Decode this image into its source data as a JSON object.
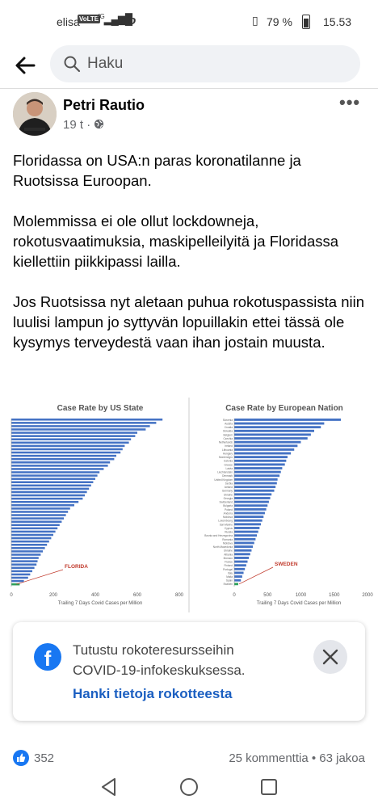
{
  "status_bar": {
    "carrier": "elisa",
    "volte": "VoLTE",
    "network": "4G",
    "fo": "Fo",
    "battery": "79 %",
    "time": "15.53"
  },
  "search": {
    "placeholder": "Haku"
  },
  "post": {
    "author": "Petri Rautio",
    "time": "19 t",
    "paragraphs": [
      "Floridassa on USA:n paras koronatilanne ja Ruotsissa Euroopan.",
      "Molemmissa ei ole ollut lockdowneja, rokotusvaatimuksia, maskipelleilyitä ja Floridassa kiellettiin piikkipassi lailla.",
      "Jos Ruotsissa nyt aletaan puhua rokotuspassista niin luulisi lampun jo syttyvän lopuillakin ettei tässä ole kysymys terveydestä vaan ihan jostain muusta."
    ]
  },
  "chart_data": [
    {
      "type": "bar",
      "orientation": "horizontal",
      "title": "Case Rate by US State",
      "xlabel": "Trailing 7 Days Covid Cases per Million",
      "xlim": [
        0,
        800
      ],
      "xticks": [
        "0",
        "200",
        "400",
        "600",
        "800"
      ],
      "annotation": "FLORIDA",
      "highlight_color": "#2ca05a",
      "bar_color": "#4472c4",
      "values": [
        720,
        690,
        660,
        640,
        600,
        590,
        570,
        560,
        540,
        530,
        520,
        500,
        490,
        470,
        460,
        440,
        420,
        410,
        400,
        390,
        380,
        370,
        360,
        350,
        340,
        320,
        300,
        280,
        270,
        260,
        250,
        240,
        230,
        220,
        210,
        200,
        190,
        180,
        170,
        160,
        150,
        140,
        130,
        125,
        120,
        110,
        100,
        90,
        80,
        60,
        40
      ]
    },
    {
      "type": "bar",
      "orientation": "horizontal",
      "title": "Case Rate by European Nation",
      "xlabel": "Trailing 7 Days Covid Cases per Million",
      "xlim": [
        0,
        2000
      ],
      "xticks": [
        "0",
        "500",
        "1000",
        "1500",
        "2000"
      ],
      "annotation": "SWEDEN",
      "highlight_color": "#2ca05a",
      "bar_color": "#4472c4",
      "categories": [
        "Slovenia",
        "Austria",
        "Croatia",
        "Slovakia",
        "Belgium",
        "Czechia",
        "Netherlands",
        "Ireland",
        "Lithuania",
        "Hungary",
        "Montenegro",
        "Estonia",
        "Greece",
        "Latvia",
        "Liechtenstein",
        "Denmark",
        "United Kingdom",
        "Serbia",
        "Iceland",
        "Germany",
        "Ukraine",
        "Georgia",
        "Switzerland",
        "Bulgaria",
        "Poland",
        "Andorra",
        "Moldova",
        "Luxembourg",
        "San Marino",
        "Cyprus",
        "Russia",
        "Bosnia and Herzegovina",
        "Romania",
        "Moldova",
        "North Macedonia",
        "Ukraine",
        "Albania",
        "Monaco",
        "France",
        "Finland",
        "Portugal",
        "Italy",
        "Malta",
        "Spain",
        "Sweden"
      ],
      "values": [
        1600,
        1350,
        1300,
        1200,
        1150,
        1100,
        1000,
        950,
        900,
        850,
        800,
        780,
        760,
        720,
        700,
        680,
        650,
        640,
        620,
        600,
        560,
        540,
        520,
        500,
        480,
        460,
        440,
        420,
        400,
        380,
        360,
        340,
        320,
        300,
        280,
        260,
        240,
        220,
        200,
        180,
        160,
        140,
        120,
        100,
        60
      ]
    }
  ],
  "vaccine_card": {
    "line1": "Tutustu rokoteresursseihin",
    "line2": "COVID-19-infokeskuksessa.",
    "link": "Hanki tietoja rokotteesta"
  },
  "engagement": {
    "likes": "352",
    "comments_shares": "25 kommenttia • 63 jakoa"
  }
}
